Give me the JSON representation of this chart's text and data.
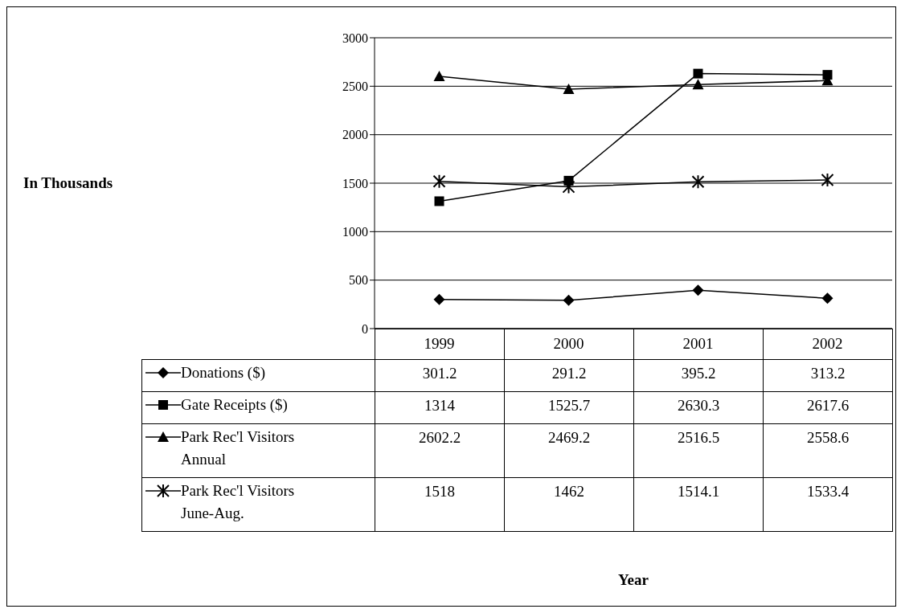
{
  "chart_data": {
    "type": "line",
    "annotations": [
      "In Thousands",
      "Year"
    ],
    "categories": [
      "1999",
      "2000",
      "2001",
      "2002"
    ],
    "series": [
      {
        "name": "Donations ($)",
        "color": "#000000",
        "marker": "diamond",
        "values": [
          301.2,
          291.2,
          395.2,
          313.2
        ]
      },
      {
        "name": "Gate Receipts ($)",
        "color": "#000000",
        "marker": "square",
        "values": [
          1314,
          1525.7,
          2630.3,
          2617.6
        ]
      },
      {
        "name": "Park Rec'l Visitors Annual",
        "color": "#000000",
        "marker": "triangle",
        "values": [
          2602.2,
          2469.2,
          2516.5,
          2558.6
        ]
      },
      {
        "name": "Park Rec'l Visitors June-Aug.",
        "color": "#000000",
        "marker": "cross",
        "values": [
          1518,
          1462,
          1514.1,
          1533.4
        ]
      }
    ],
    "ylim": [
      0,
      3000
    ],
    "yticks": [
      0,
      500,
      1000,
      1500,
      2000,
      2500,
      3000
    ],
    "grid": "y",
    "legend": "bottom",
    "data_labels": true,
    "line_style": "solid"
  }
}
